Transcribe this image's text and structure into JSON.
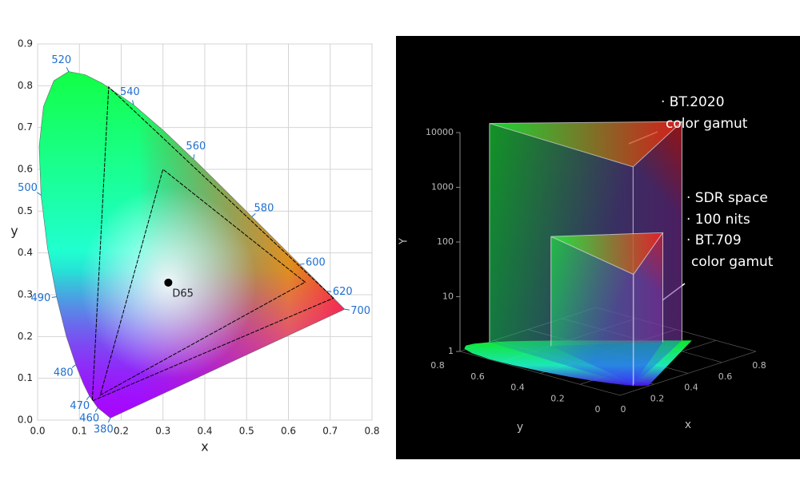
{
  "chart_data": [
    {
      "type": "chromaticity",
      "xlabel": "x",
      "ylabel": "y",
      "xlim": [
        0,
        0.8
      ],
      "ylim": [
        0,
        0.9
      ],
      "xticks": [
        {
          "value": 0,
          "label": "0.0"
        },
        0.1,
        0.2,
        0.3,
        0.4,
        0.5,
        0.6,
        0.7,
        0.8
      ],
      "yticks": [
        {
          "value": 0,
          "label": "0.0"
        },
        0.1,
        0.2,
        0.3,
        0.4,
        0.5,
        0.6,
        0.7,
        0.8,
        0.9
      ],
      "grid": true,
      "locus": {
        "x": [
          0.1741,
          0.144,
          0.1241,
          0.1096,
          0.0913,
          0.0687,
          0.0454,
          0.0235,
          0.0082,
          0.0039,
          0.0139,
          0.0389,
          0.0743,
          0.1142,
          0.1547,
          0.2296,
          0.3016,
          0.3731,
          0.4441,
          0.5125,
          0.5752,
          0.627,
          0.6658,
          0.6915,
          0.719,
          0.7347
        ],
        "y": [
          0.005,
          0.0297,
          0.0578,
          0.0868,
          0.1327,
          0.2007,
          0.295,
          0.4127,
          0.5384,
          0.6548,
          0.7502,
          0.812,
          0.8338,
          0.8262,
          0.8059,
          0.7543,
          0.6923,
          0.6245,
          0.5547,
          0.4866,
          0.4242,
          0.3725,
          0.334,
          0.3083,
          0.2809,
          0.2653
        ],
        "labels": [
          380,
          460,
          470,
          null,
          480,
          null,
          490,
          null,
          500,
          null,
          null,
          null,
          520,
          null,
          null,
          540,
          null,
          560,
          null,
          580,
          null,
          600,
          null,
          620,
          null,
          700
        ],
        "label_color": "#1f6fd0"
      },
      "series": [
        {
          "x": [
            0.708,
            0.17,
            0.131
          ],
          "y": [
            0.292,
            0.797,
            0.046
          ],
          "color": "#000000"
        },
        {
          "x": [
            0.64,
            0.3,
            0.15
          ],
          "y": [
            0.33,
            0.6,
            0.06
          ],
          "color": "#000000"
        }
      ],
      "point": {
        "label": "D65",
        "x": 0.3127,
        "y": 0.329,
        "color": "#000000"
      }
    },
    {
      "type": "gamut3d",
      "zlabel": "Y",
      "xlabel": "x",
      "ylabel": "y",
      "zlim": [
        1,
        10000
      ],
      "zticks": [
        1,
        10,
        100,
        1000,
        10000
      ],
      "zlog": true,
      "xlim": [
        0,
        0.8
      ],
      "xticks": [
        0,
        0.2,
        0.4,
        0.6,
        0.8
      ],
      "ylim": [
        0,
        0.8
      ],
      "yticks": [
        0,
        0.2,
        0.4,
        0.6,
        0.8
      ],
      "series": [
        {
          "x": [
            0.708,
            0.17,
            0.131
          ],
          "y": [
            0.292,
            0.797,
            0.046
          ],
          "peak": 10000
        },
        {
          "x": [
            0.64,
            0.3,
            0.15
          ],
          "y": [
            0.33,
            0.6,
            0.06
          ],
          "peak": 100
        }
      ],
      "annotations": [
        {
          "lines": [
            "· BT.2020",
            "color gamut"
          ]
        },
        {
          "lines": [
            "· SDR space"
          ]
        },
        {
          "lines": [
            "· 100 nits"
          ]
        },
        {
          "lines": [
            "· BT.709",
            "color gamut"
          ]
        }
      ]
    }
  ]
}
